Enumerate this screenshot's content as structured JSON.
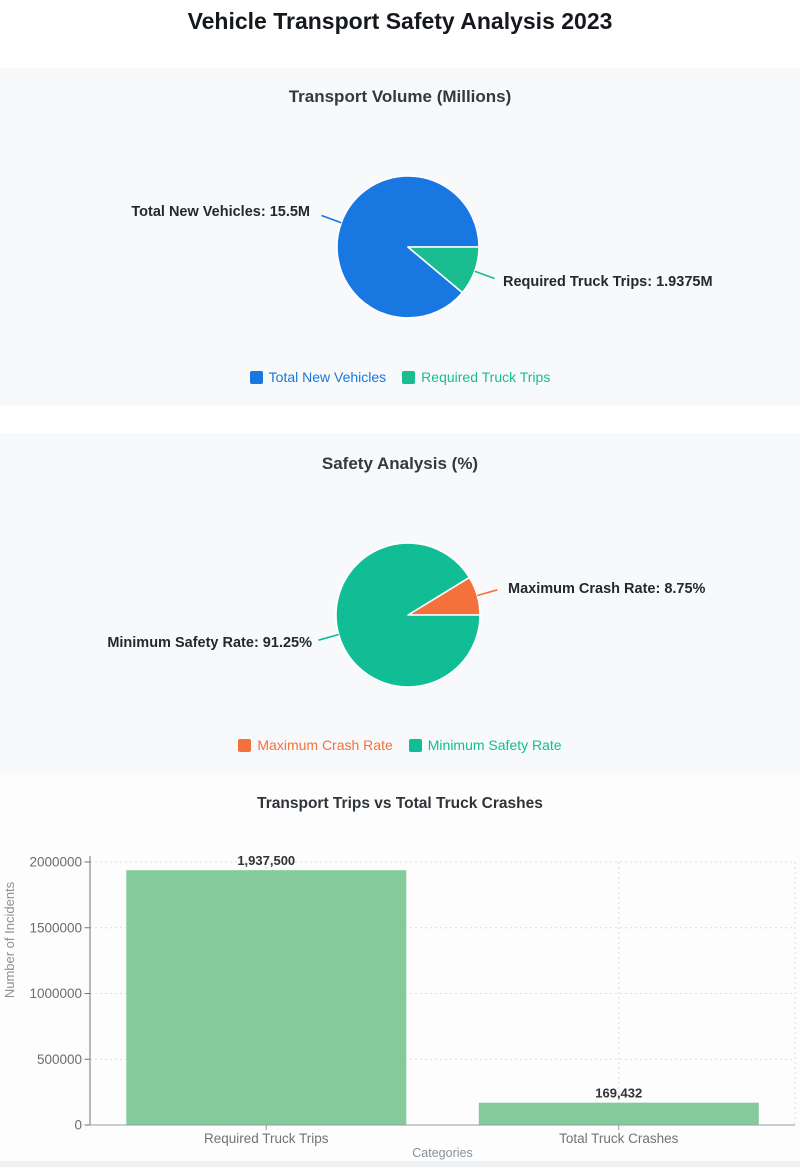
{
  "page": {
    "title": "Vehicle Transport Safety Analysis 2023"
  },
  "chart_data": [
    {
      "type": "pie",
      "title": "Transport Volume (Millions)",
      "start_angle_deg": 0,
      "direction": "counterclockwise",
      "slices": [
        {
          "label": "Total New Vehicles",
          "value": 15.5,
          "callout": "Total New Vehicles: 15.5M",
          "color": "#1877e0"
        },
        {
          "label": "Required Truck Trips",
          "value": 1.9375,
          "callout": "Required Truck Trips: 1.9375M",
          "color": "#19bd8f"
        }
      ]
    },
    {
      "type": "pie",
      "title": "Safety Analysis (%)",
      "start_angle_deg": 0,
      "direction": "counterclockwise",
      "slices": [
        {
          "label": "Maximum Crash Rate",
          "value": 8.75,
          "callout": "Maximum Crash Rate: 8.75%",
          "color": "#f4713c"
        },
        {
          "label": "Minimum Safety Rate",
          "value": 91.25,
          "callout": "Minimum Safety Rate: 91.25%",
          "color": "#10bd95"
        }
      ]
    },
    {
      "type": "bar",
      "title": "Transport Trips vs Total Truck Crashes",
      "categories": [
        "Required Truck Trips",
        "Total Truck Crashes"
      ],
      "values": [
        1937500,
        169432
      ],
      "value_labels": [
        "1,937,500",
        "169,432"
      ],
      "xlabel": "Categories",
      "ylabel": "Number of Incidents",
      "ylim": [
        0,
        2000000
      ],
      "yticks": [
        0,
        500000,
        1000000,
        1500000,
        2000000
      ],
      "ytick_labels": [
        "0",
        "500000",
        "1000000",
        "1500000",
        "2000000"
      ],
      "bar_color": "#84ca9b",
      "grid": "dashed",
      "grid_color": "#dadde1"
    }
  ]
}
